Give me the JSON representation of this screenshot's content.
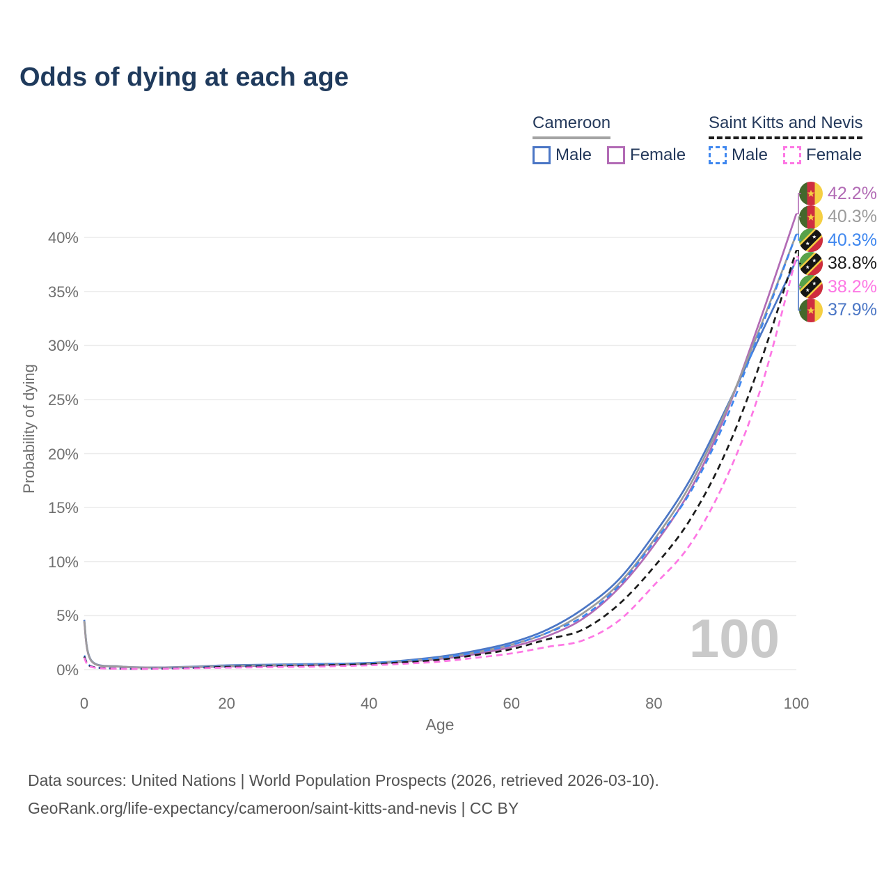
{
  "header": {
    "title": "Odds of dying at each age"
  },
  "legend": {
    "groups": [
      {
        "country": "Cameroon",
        "line_style": "solid",
        "underline_color": "#a3a3a3",
        "items": [
          {
            "label": "Male",
            "color": "#4b76c5"
          },
          {
            "label": "Female",
            "color": "#b26bb5"
          }
        ]
      },
      {
        "country": "Saint Kitts and Nevis",
        "line_style": "dashed",
        "underline_color": "#1c1c1c",
        "items": [
          {
            "label": "Male",
            "color": "#3f87ef"
          },
          {
            "label": "Female",
            "color": "#fd77e4"
          }
        ]
      }
    ]
  },
  "watermark": "100",
  "chart_data": {
    "type": "line",
    "title": "Odds of dying at each age",
    "xlabel": "Age",
    "ylabel": "Probability of dying",
    "units": "%",
    "xlim": [
      0,
      100
    ],
    "ylim": [
      0,
      43
    ],
    "xticks": [
      0,
      20,
      40,
      60,
      80,
      100
    ],
    "yticks_percent": [
      0,
      5,
      10,
      15,
      20,
      25,
      30,
      35,
      40
    ],
    "grid": "horizontal",
    "legend_position": "top-right",
    "x_ages": [
      0,
      1,
      5,
      10,
      15,
      20,
      25,
      30,
      35,
      40,
      45,
      50,
      55,
      60,
      65,
      70,
      75,
      80,
      85,
      90,
      95,
      100
    ],
    "series": [
      {
        "id": "cameroon-male",
        "name": "Cameroon Male",
        "color": "#4b76c5",
        "dash": false,
        "flag": "cameroon",
        "end_label": "37.9%",
        "values_percent": [
          4.6,
          0.85,
          0.3,
          0.2,
          0.28,
          0.4,
          0.45,
          0.5,
          0.55,
          0.62,
          0.85,
          1.2,
          1.75,
          2.5,
          3.7,
          5.6,
          8.3,
          12.5,
          17.5,
          24.0,
          31.0,
          37.9
        ]
      },
      {
        "id": "cameroon-female",
        "name": "Cameroon Female",
        "color": "#b26bb5",
        "dash": false,
        "flag": "cameroon",
        "end_label": "42.2%",
        "values_percent": [
          4.4,
          0.8,
          0.28,
          0.18,
          0.22,
          0.3,
          0.35,
          0.4,
          0.45,
          0.55,
          0.75,
          1.0,
          1.45,
          2.1,
          3.1,
          4.7,
          7.5,
          11.5,
          16.5,
          23.5,
          32.5,
          42.2
        ]
      },
      {
        "id": "cameroon-all",
        "name": "Cameroon (all)",
        "color": "#9c9c9c",
        "dash": false,
        "flag": "cameroon",
        "end_label": "40.3%",
        "values_percent": [
          4.5,
          0.82,
          0.29,
          0.19,
          0.25,
          0.35,
          0.4,
          0.45,
          0.5,
          0.58,
          0.8,
          1.1,
          1.6,
          2.3,
          3.4,
          5.2,
          7.9,
          12.0,
          17.0,
          23.8,
          31.8,
          40.3
        ]
      },
      {
        "id": "saint-kitts-and-nevis-male",
        "name": "Saint Kitts and Nevis Male",
        "color": "#3f87ef",
        "dash": true,
        "flag": "saint-kitts-and-nevis",
        "end_label": "40.3%",
        "values_percent": [
          1.3,
          0.3,
          0.1,
          0.1,
          0.18,
          0.3,
          0.38,
          0.45,
          0.52,
          0.6,
          0.8,
          1.1,
          1.6,
          2.3,
          3.4,
          4.9,
          7.7,
          11.8,
          16.3,
          23.0,
          31.5,
          40.3
        ]
      },
      {
        "id": "saint-kitts-and-nevis-all",
        "name": "Saint Kitts and Nevis (all)",
        "color": "#1b1b1b",
        "dash": true,
        "flag": "saint-kitts-and-nevis",
        "end_label": "38.8%",
        "values_percent": [
          1.2,
          0.28,
          0.09,
          0.09,
          0.15,
          0.25,
          0.3,
          0.35,
          0.42,
          0.5,
          0.68,
          0.92,
          1.35,
          1.9,
          2.8,
          3.7,
          6.0,
          9.5,
          13.8,
          20.0,
          28.5,
          38.8
        ]
      },
      {
        "id": "saint-kitts-and-nevis-female",
        "name": "Saint Kitts and Nevis Female",
        "color": "#fd77e4",
        "dash": true,
        "flag": "saint-kitts-and-nevis",
        "end_label": "38.2%",
        "values_percent": [
          1.1,
          0.25,
          0.08,
          0.08,
          0.12,
          0.18,
          0.22,
          0.26,
          0.32,
          0.4,
          0.55,
          0.75,
          1.1,
          1.5,
          2.1,
          2.7,
          4.5,
          7.8,
          11.5,
          17.5,
          26.0,
          38.2
        ]
      }
    ]
  },
  "footer": {
    "line1": "Data sources: United Nations | World Population Prospects (2026, retrieved 2026-03-10).",
    "line2": "GeoRank.org/life-expectancy/cameroon/saint-kitts-and-nevis | CC BY"
  }
}
